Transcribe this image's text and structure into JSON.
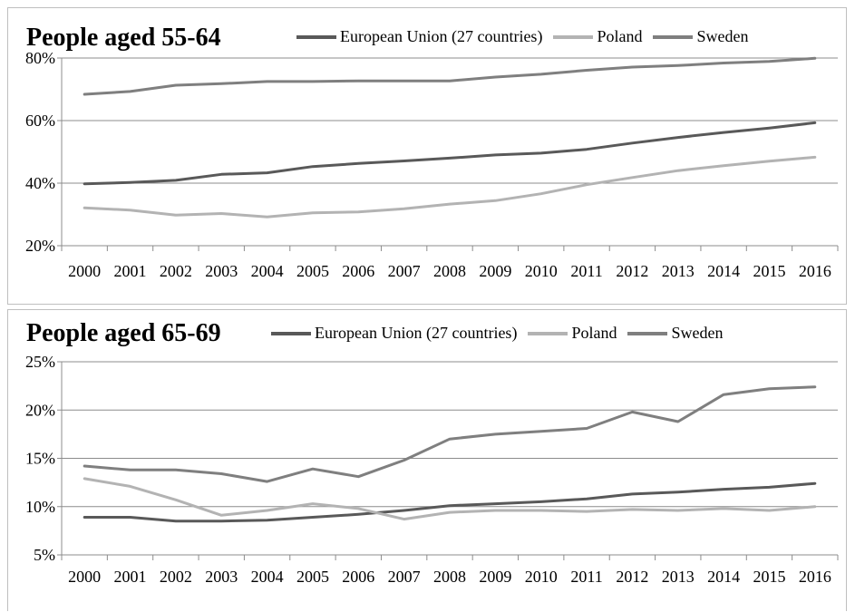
{
  "colors": {
    "eu": "#595959",
    "poland": "#b3b3b3",
    "sweden": "#7f7f7f",
    "axis": "#8c8c8c"
  },
  "chart_data": [
    {
      "type": "line",
      "title": "People aged 55-64",
      "x": [
        "2000",
        "2001",
        "2002",
        "2003",
        "2004",
        "2005",
        "2006",
        "2007",
        "2008",
        "2009",
        "2010",
        "2011",
        "2012",
        "2013",
        "2014",
        "2015",
        "2016"
      ],
      "ylim": [
        20,
        80
      ],
      "yticks": [
        "20%",
        "40%",
        "60%",
        "80%"
      ],
      "legend": "top",
      "series": [
        {
          "name": "European Union (27 countries)",
          "color": "#595959",
          "values": [
            39.8,
            40.2,
            40.9,
            42.8,
            43.3,
            45.3,
            46.3,
            47.1,
            48.0,
            49.0,
            49.6,
            50.8,
            52.8,
            54.6,
            56.2,
            57.6,
            59.3
          ]
        },
        {
          "name": "Poland",
          "color": "#b3b3b3",
          "values": [
            32.1,
            31.4,
            29.8,
            30.3,
            29.2,
            30.5,
            30.8,
            31.8,
            33.3,
            34.4,
            36.6,
            39.5,
            41.8,
            44.0,
            45.6,
            47.0,
            48.3
          ]
        },
        {
          "name": "Sweden",
          "color": "#7f7f7f",
          "values": [
            68.4,
            69.3,
            71.3,
            71.8,
            72.5,
            72.5,
            72.7,
            72.7,
            72.7,
            73.9,
            74.8,
            76.1,
            77.1,
            77.6,
            78.4,
            78.9,
            79.9
          ]
        }
      ]
    },
    {
      "type": "line",
      "title": "People aged 65-69",
      "x": [
        "2000",
        "2001",
        "2002",
        "2003",
        "2004",
        "2005",
        "2006",
        "2007",
        "2008",
        "2009",
        "2010",
        "2011",
        "2012",
        "2013",
        "2014",
        "2015",
        "2016"
      ],
      "ylim": [
        5,
        25
      ],
      "yticks": [
        "5%",
        "10%",
        "15%",
        "20%",
        "25%"
      ],
      "legend": "top",
      "series": [
        {
          "name": "European Union (27 countries)",
          "color": "#595959",
          "values": [
            8.9,
            8.9,
            8.5,
            8.5,
            8.6,
            8.9,
            9.2,
            9.6,
            10.1,
            10.3,
            10.5,
            10.8,
            11.3,
            11.5,
            11.8,
            12.0,
            12.4
          ]
        },
        {
          "name": "Poland",
          "color": "#b3b3b3",
          "values": [
            12.9,
            12.1,
            10.7,
            9.1,
            9.6,
            10.3,
            9.8,
            8.7,
            9.4,
            9.6,
            9.6,
            9.5,
            9.7,
            9.6,
            9.8,
            9.6,
            10.0
          ]
        },
        {
          "name": "Sweden",
          "color": "#7f7f7f",
          "values": [
            14.2,
            13.8,
            13.8,
            13.4,
            12.6,
            13.9,
            13.1,
            14.8,
            17.0,
            17.5,
            17.8,
            18.1,
            19.8,
            18.8,
            21.6,
            22.2,
            22.4
          ]
        }
      ]
    }
  ]
}
